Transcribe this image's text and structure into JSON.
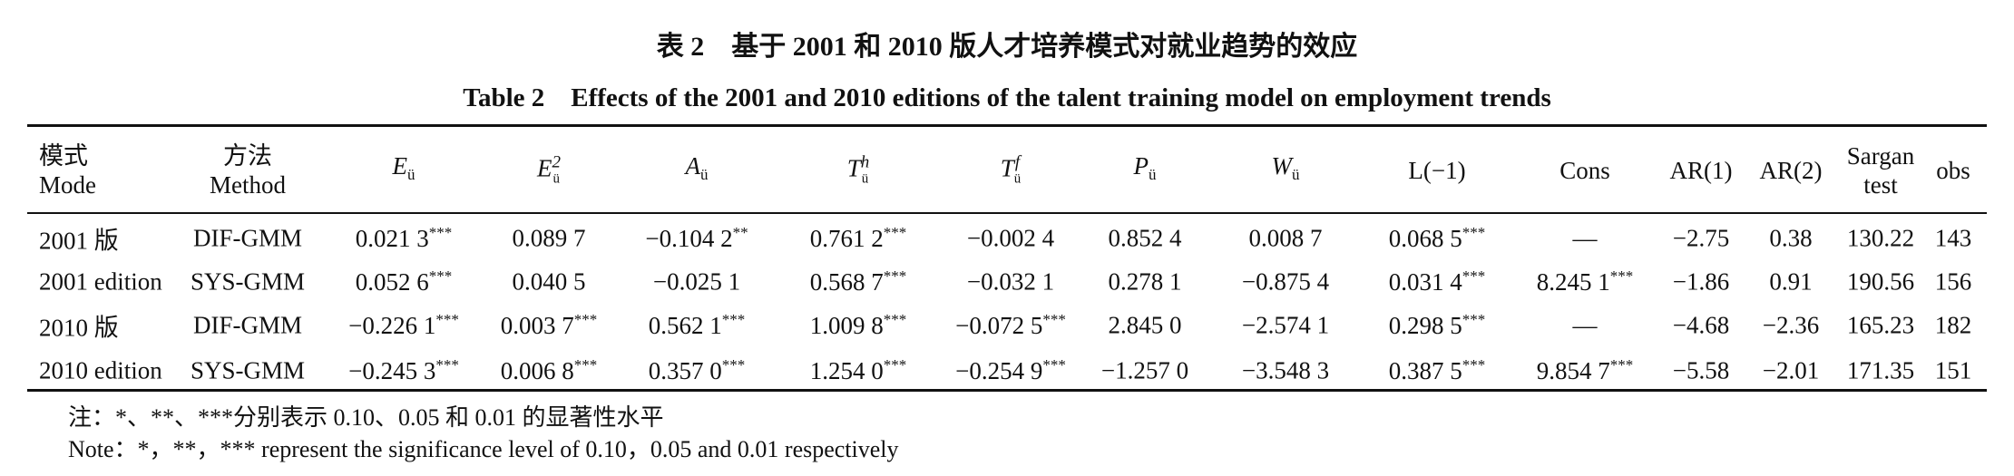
{
  "title_cn": "表 2　基于 2001 和 2010 版人才培养模式对就业趋势的效应",
  "title_en": "Table 2　Effects of the 2001 and 2010 editions of the talent training model on employment trends",
  "table": {
    "header": [
      {
        "lines": [
          "模式",
          "Mode"
        ]
      },
      {
        "lines": [
          "方法",
          "Method"
        ]
      },
      {
        "main": "E",
        "sub": "ü"
      },
      {
        "main": "E",
        "sub": "ü",
        "sup": "2"
      },
      {
        "main": "A",
        "sub": "ü"
      },
      {
        "main": "T",
        "sub": "ü",
        "sup": "h"
      },
      {
        "main": "T",
        "sub": "ü",
        "sup": "f"
      },
      {
        "main": "P",
        "sub": "ü"
      },
      {
        "main": "W",
        "sub": "ü"
      },
      {
        "lines": [
          "L(−1)"
        ]
      },
      {
        "lines": [
          "Cons"
        ]
      },
      {
        "lines": [
          "AR(1)"
        ]
      },
      {
        "lines": [
          "AR(2)"
        ]
      },
      {
        "lines": [
          "Sargan",
          "test"
        ]
      },
      {
        "lines": [
          "obs"
        ]
      }
    ],
    "rows": [
      [
        {
          "value": "2001 版"
        },
        {
          "value": "DIF-GMM"
        },
        {
          "value": "0.021 3",
          "stars": "***"
        },
        {
          "value": "0.089 7"
        },
        {
          "value": "−0.104 2",
          "stars": "**"
        },
        {
          "value": "0.761 2",
          "stars": "***"
        },
        {
          "value": "−0.002 4"
        },
        {
          "value": "0.852 4"
        },
        {
          "value": "0.008 7"
        },
        {
          "value": "0.068 5",
          "stars": "***"
        },
        {
          "value": "—"
        },
        {
          "value": "−2.75"
        },
        {
          "value": "0.38"
        },
        {
          "value": "130.22"
        },
        {
          "value": "143"
        }
      ],
      [
        {
          "value": "2001 edition"
        },
        {
          "value": "SYS-GMM"
        },
        {
          "value": "0.052 6",
          "stars": "***"
        },
        {
          "value": "0.040 5"
        },
        {
          "value": "−0.025 1"
        },
        {
          "value": "0.568 7",
          "stars": "***"
        },
        {
          "value": "−0.032 1"
        },
        {
          "value": "0.278 1"
        },
        {
          "value": "−0.875 4"
        },
        {
          "value": "0.031 4",
          "stars": "***"
        },
        {
          "value": "8.245 1",
          "stars": "***"
        },
        {
          "value": "−1.86"
        },
        {
          "value": "0.91"
        },
        {
          "value": "190.56"
        },
        {
          "value": "156"
        }
      ],
      [
        {
          "value": "2010 版"
        },
        {
          "value": "DIF-GMM"
        },
        {
          "value": "−0.226 1",
          "stars": "***"
        },
        {
          "value": "0.003 7",
          "stars": "***"
        },
        {
          "value": "0.562 1",
          "stars": "***"
        },
        {
          "value": "1.009 8",
          "stars": "***"
        },
        {
          "value": "−0.072 5",
          "stars": "***"
        },
        {
          "value": "2.845 0"
        },
        {
          "value": "−2.574 1"
        },
        {
          "value": "0.298 5",
          "stars": "***"
        },
        {
          "value": "—"
        },
        {
          "value": "−4.68"
        },
        {
          "value": "−2.36"
        },
        {
          "value": "165.23"
        },
        {
          "value": "182"
        }
      ],
      [
        {
          "value": "2010 edition"
        },
        {
          "value": "SYS-GMM"
        },
        {
          "value": "−0.245 3",
          "stars": "***"
        },
        {
          "value": "0.006 8",
          "stars": "***"
        },
        {
          "value": "0.357 0",
          "stars": "***"
        },
        {
          "value": "1.254 0",
          "stars": "***"
        },
        {
          "value": "−0.254 9",
          "stars": "***"
        },
        {
          "value": "−1.257 0"
        },
        {
          "value": "−3.548 3"
        },
        {
          "value": "0.387 5",
          "stars": "***"
        },
        {
          "value": "9.854 7",
          "stars": "***"
        },
        {
          "value": "−5.58"
        },
        {
          "value": "−2.01"
        },
        {
          "value": "171.35"
        },
        {
          "value": "151"
        }
      ]
    ]
  },
  "notes": [
    "注：*、**、***分别表示 0.10、0.05 和 0.01 的显著性水平",
    "Note：*，**，*** represent the significance level of 0.10，0.05 and 0.01 respectively"
  ]
}
